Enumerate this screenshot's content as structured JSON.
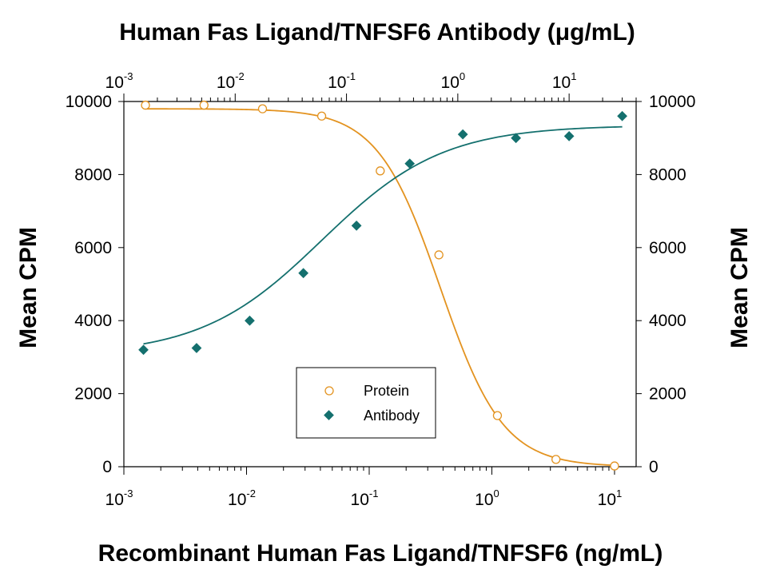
{
  "chart_data": {
    "type": "scatter",
    "title": "Human Fas Ligand/TNFSF6 Antibody (μg/mL)",
    "xlabel": "Recombinant Human Fas Ligand/TNFSF6 (ng/mL)",
    "ylabel": "Mean CPM",
    "ylabel_right": "Mean CPM",
    "x_scale": "log",
    "xlim": [
      0.001,
      15
    ],
    "ylim": [
      0,
      10000
    ],
    "x2_scale": "log",
    "x2lim": [
      0.001,
      40
    ],
    "x2label": "Human Fas Ligand/TNFSF6 Antibody (μg/mL)",
    "bottom_ticks": [
      {
        "base": "10",
        "exp": "-3",
        "value": 0.001
      },
      {
        "base": "10",
        "exp": "-2",
        "value": 0.01
      },
      {
        "base": "10",
        "exp": "-1",
        "value": 0.1
      },
      {
        "base": "10",
        "exp": "0",
        "value": 1
      },
      {
        "base": "10",
        "exp": "1",
        "value": 10
      }
    ],
    "top_ticks": [
      {
        "base": "10",
        "exp": "-3",
        "value": 0.001
      },
      {
        "base": "10",
        "exp": "-2",
        "value": 0.01
      },
      {
        "base": "10",
        "exp": "-1",
        "value": 0.1
      },
      {
        "base": "10",
        "exp": "0",
        "value": 1
      },
      {
        "base": "10",
        "exp": "1",
        "value": 10
      }
    ],
    "y_ticks": [
      "0",
      "2000",
      "4000",
      "6000",
      "8000",
      "10000"
    ],
    "y_tick_values": [
      0,
      2000,
      4000,
      6000,
      8000,
      10000
    ],
    "grid": false,
    "legend_position": "bottom-center",
    "series": [
      {
        "name": "Protein",
        "axis": "bottom",
        "marker": "open-circle",
        "color": "#E39320",
        "x": [
          0.0015,
          0.0045,
          0.0135,
          0.041,
          0.123,
          0.37,
          1.11,
          3.33,
          10
        ],
        "y": [
          9900,
          9900,
          9800,
          9600,
          8100,
          5800,
          1400,
          200,
          20
        ],
        "fit": {
          "bottom": 0,
          "top": 9800,
          "ec50": 0.38,
          "hill": 1.7
        }
      },
      {
        "name": "Antibody",
        "axis": "top",
        "marker": "filled-diamond",
        "color": "#14706E",
        "x": [
          0.0015,
          0.0045,
          0.0135,
          0.041,
          0.123,
          0.37,
          1.11,
          3.33,
          10,
          30
        ],
        "y": [
          3200,
          3250,
          4000,
          5300,
          6600,
          8300,
          9100,
          9000,
          9050,
          9600
        ],
        "fit": {
          "bottom": 3050,
          "top": 9350,
          "ec50": 0.06,
          "hill": 0.8
        }
      }
    ]
  }
}
